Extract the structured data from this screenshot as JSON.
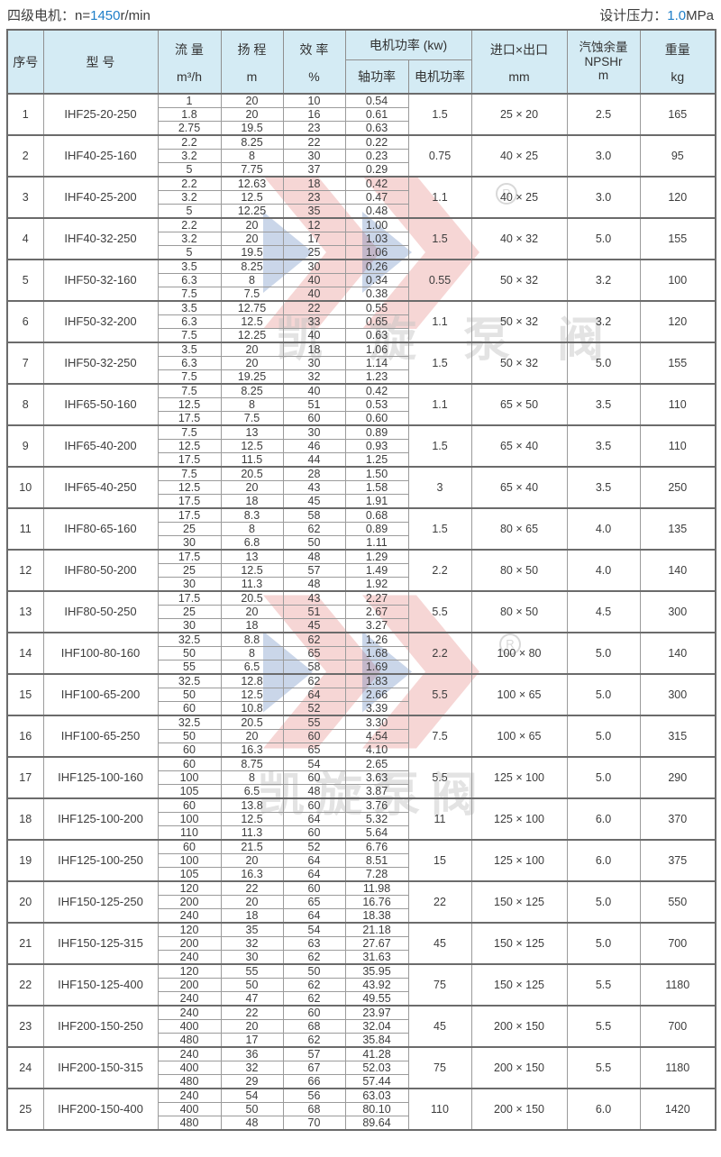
{
  "page": {
    "top_left": {
      "prefix": "四级电机：n=",
      "value": "1450",
      "suffix": "r/min"
    },
    "top_right": {
      "prefix": "设计压力：",
      "value": "1.0",
      "suffix": "MPa"
    },
    "accent_color": "#1e7ec8",
    "header_bg": "#d4ebf4"
  },
  "watermark": {
    "text": "凯旋泵阀",
    "registered": "R",
    "red": "#d0342c",
    "blue": "#2b5ca8"
  },
  "table": {
    "headers": {
      "seq": "序号",
      "model": "型 号",
      "flow_l1": "流 量",
      "flow_l2": "m³/h",
      "head_l1": "扬 程",
      "head_l2": "m",
      "eff_l1": "效 率",
      "eff_l2": "%",
      "power_group": "电机功率 (kw)",
      "shaft_power": "轴功率",
      "motor_power": "电机功率",
      "ports_l1": "进口×出口",
      "ports_l2": "mm",
      "npsh_l1": "汽蚀余量",
      "npsh_l2": "NPSHr",
      "npsh_l3": "m",
      "weight_l1": "重量",
      "weight_l2": "kg"
    },
    "rows": [
      {
        "seq": "1",
        "model": "IHF25-20-250",
        "flow": [
          "1",
          "1.8",
          "2.75"
        ],
        "head": [
          "20",
          "20",
          "19.5"
        ],
        "eff": [
          "10",
          "16",
          "23"
        ],
        "shaft": [
          "0.54",
          "0.61",
          "0.63"
        ],
        "motor": "1.5",
        "ports": "25 × 20",
        "npsh": "2.5",
        "weight": "165"
      },
      {
        "seq": "2",
        "model": "IHF40-25-160",
        "flow": [
          "2.2",
          "3.2",
          "5"
        ],
        "head": [
          "8.25",
          "8",
          "7.75"
        ],
        "eff": [
          "22",
          "30",
          "37"
        ],
        "shaft": [
          "0.22",
          "0.23",
          "0.29"
        ],
        "motor": "0.75",
        "ports": "40 × 25",
        "npsh": "3.0",
        "weight": "95"
      },
      {
        "seq": "3",
        "model": "IHF40-25-200",
        "flow": [
          "2.2",
          "3.2",
          "5"
        ],
        "head": [
          "12.63",
          "12.5",
          "12.25"
        ],
        "eff": [
          "18",
          "23",
          "35"
        ],
        "shaft": [
          "0.42",
          "0.47",
          "0.48"
        ],
        "motor": "1.1",
        "ports": "40 × 25",
        "npsh": "3.0",
        "weight": "120"
      },
      {
        "seq": "4",
        "model": "IHF40-32-250",
        "flow": [
          "2.2",
          "3.2",
          "5"
        ],
        "head": [
          "20",
          "20",
          "19.5"
        ],
        "eff": [
          "12",
          "17",
          "25"
        ],
        "shaft": [
          "1.00",
          "1.03",
          "1.06"
        ],
        "motor": "1.5",
        "ports": "40 × 32",
        "npsh": "5.0",
        "weight": "155"
      },
      {
        "seq": "5",
        "model": "IHF50-32-160",
        "flow": [
          "3.5",
          "6.3",
          "7.5"
        ],
        "head": [
          "8.25",
          "8",
          "7.5"
        ],
        "eff": [
          "30",
          "40",
          "40"
        ],
        "shaft": [
          "0.26",
          "0.34",
          "0.38"
        ],
        "motor": "0.55",
        "ports": "50 × 32",
        "npsh": "3.2",
        "weight": "100"
      },
      {
        "seq": "6",
        "model": "IHF50-32-200",
        "flow": [
          "3.5",
          "6.3",
          "7.5"
        ],
        "head": [
          "12.75",
          "12.5",
          "12.25"
        ],
        "eff": [
          "22",
          "33",
          "40"
        ],
        "shaft": [
          "0.55",
          "0.65",
          "0.63"
        ],
        "motor": "1.1",
        "ports": "50 × 32",
        "npsh": "3.2",
        "weight": "120"
      },
      {
        "seq": "7",
        "model": "IHF50-32-250",
        "flow": [
          "3.5",
          "6.3",
          "7.5"
        ],
        "head": [
          "20",
          "20",
          "19.25"
        ],
        "eff": [
          "18",
          "30",
          "32"
        ],
        "shaft": [
          "1.06",
          "1.14",
          "1.23"
        ],
        "motor": "1.5",
        "ports": "50 × 32",
        "npsh": "5.0",
        "weight": "155"
      },
      {
        "seq": "8",
        "model": "IHF65-50-160",
        "flow": [
          "7.5",
          "12.5",
          "17.5"
        ],
        "head": [
          "8.25",
          "8",
          "7.5"
        ],
        "eff": [
          "40",
          "51",
          "60"
        ],
        "shaft": [
          "0.42",
          "0.53",
          "0.60"
        ],
        "motor": "1.1",
        "ports": "65 × 50",
        "npsh": "3.5",
        "weight": "110"
      },
      {
        "seq": "9",
        "model": "IHF65-40-200",
        "flow": [
          "7.5",
          "12.5",
          "17.5"
        ],
        "head": [
          "13",
          "12.5",
          "11.5"
        ],
        "eff": [
          "30",
          "46",
          "44"
        ],
        "shaft": [
          "0.89",
          "0.93",
          "1.25"
        ],
        "motor": "1.5",
        "ports": "65 × 40",
        "npsh": "3.5",
        "weight": "110"
      },
      {
        "seq": "10",
        "model": "IHF65-40-250",
        "flow": [
          "7.5",
          "12.5",
          "17.5"
        ],
        "head": [
          "20.5",
          "20",
          "18"
        ],
        "eff": [
          "28",
          "43",
          "45"
        ],
        "shaft": [
          "1.50",
          "1.58",
          "1.91"
        ],
        "motor": "3",
        "ports": "65 × 40",
        "npsh": "3.5",
        "weight": "250"
      },
      {
        "seq": "11",
        "model": "IHF80-65-160",
        "flow": [
          "17.5",
          "25",
          "30"
        ],
        "head": [
          "8.3",
          "8",
          "6.8"
        ],
        "eff": [
          "58",
          "62",
          "50"
        ],
        "shaft": [
          "0.68",
          "0.89",
          "1.11"
        ],
        "motor": "1.5",
        "ports": "80 × 65",
        "npsh": "4.0",
        "weight": "135"
      },
      {
        "seq": "12",
        "model": "IHF80-50-200",
        "flow": [
          "17.5",
          "25",
          "30"
        ],
        "head": [
          "13",
          "12.5",
          "11.3"
        ],
        "eff": [
          "48",
          "57",
          "48"
        ],
        "shaft": [
          "1.29",
          "1.49",
          "1.92"
        ],
        "motor": "2.2",
        "ports": "80 × 50",
        "npsh": "4.0",
        "weight": "140"
      },
      {
        "seq": "13",
        "model": "IHF80-50-250",
        "flow": [
          "17.5",
          "25",
          "30"
        ],
        "head": [
          "20.5",
          "20",
          "18"
        ],
        "eff": [
          "43",
          "51",
          "45"
        ],
        "shaft": [
          "2.27",
          "2.67",
          "3.27"
        ],
        "motor": "5.5",
        "ports": "80 × 50",
        "npsh": "4.5",
        "weight": "300"
      },
      {
        "seq": "14",
        "model": "IHF100-80-160",
        "flow": [
          "32.5",
          "50",
          "55"
        ],
        "head": [
          "8.8",
          "8",
          "6.5"
        ],
        "eff": [
          "62",
          "65",
          "58"
        ],
        "shaft": [
          "1.26",
          "1.68",
          "1.69"
        ],
        "motor": "2.2",
        "ports": "100 × 80",
        "npsh": "5.0",
        "weight": "140"
      },
      {
        "seq": "15",
        "model": "IHF100-65-200",
        "flow": [
          "32.5",
          "50",
          "60"
        ],
        "head": [
          "12.8",
          "12.5",
          "10.8"
        ],
        "eff": [
          "62",
          "64",
          "52"
        ],
        "shaft": [
          "1.83",
          "2.66",
          "3.39"
        ],
        "motor": "5.5",
        "ports": "100 × 65",
        "npsh": "5.0",
        "weight": "300"
      },
      {
        "seq": "16",
        "model": "IHF100-65-250",
        "flow": [
          "32.5",
          "50",
          "60"
        ],
        "head": [
          "20.5",
          "20",
          "16.3"
        ],
        "eff": [
          "55",
          "60",
          "65"
        ],
        "shaft": [
          "3.30",
          "4.54",
          "4.10"
        ],
        "motor": "7.5",
        "ports": "100 × 65",
        "npsh": "5.0",
        "weight": "315"
      },
      {
        "seq": "17",
        "model": "IHF125-100-160",
        "flow": [
          "60",
          "100",
          "105"
        ],
        "head": [
          "8.75",
          "8",
          "6.5"
        ],
        "eff": [
          "54",
          "60",
          "48"
        ],
        "shaft": [
          "2.65",
          "3.63",
          "3.87"
        ],
        "motor": "5.5",
        "ports": "125 × 100",
        "npsh": "5.0",
        "weight": "290"
      },
      {
        "seq": "18",
        "model": "IHF125-100-200",
        "flow": [
          "60",
          "100",
          "110"
        ],
        "head": [
          "13.8",
          "12.5",
          "11.3"
        ],
        "eff": [
          "60",
          "64",
          "60"
        ],
        "shaft": [
          "3.76",
          "5.32",
          "5.64"
        ],
        "motor": "11",
        "ports": "125 × 100",
        "npsh": "6.0",
        "weight": "370"
      },
      {
        "seq": "19",
        "model": "IHF125-100-250",
        "flow": [
          "60",
          "100",
          "105"
        ],
        "head": [
          "21.5",
          "20",
          "16.3"
        ],
        "eff": [
          "52",
          "64",
          "64"
        ],
        "shaft": [
          "6.76",
          "8.51",
          "7.28"
        ],
        "motor": "15",
        "ports": "125 × 100",
        "npsh": "6.0",
        "weight": "375"
      },
      {
        "seq": "20",
        "model": "IHF150-125-250",
        "flow": [
          "120",
          "200",
          "240"
        ],
        "head": [
          "22",
          "20",
          "18"
        ],
        "eff": [
          "60",
          "65",
          "64"
        ],
        "shaft": [
          "11.98",
          "16.76",
          "18.38"
        ],
        "motor": "22",
        "ports": "150 × 125",
        "npsh": "5.0",
        "weight": "550"
      },
      {
        "seq": "21",
        "model": "IHF150-125-315",
        "flow": [
          "120",
          "200",
          "240"
        ],
        "head": [
          "35",
          "32",
          "30"
        ],
        "eff": [
          "54",
          "63",
          "62"
        ],
        "shaft": [
          "21.18",
          "27.67",
          "31.63"
        ],
        "motor": "45",
        "ports": "150 × 125",
        "npsh": "5.0",
        "weight": "700"
      },
      {
        "seq": "22",
        "model": "IHF150-125-400",
        "flow": [
          "120",
          "200",
          "240"
        ],
        "head": [
          "55",
          "50",
          "47"
        ],
        "eff": [
          "50",
          "62",
          "62"
        ],
        "shaft": [
          "35.95",
          "43.92",
          "49.55"
        ],
        "motor": "75",
        "ports": "150 × 125",
        "npsh": "5.5",
        "weight": "1180"
      },
      {
        "seq": "23",
        "model": "IHF200-150-250",
        "flow": [
          "240",
          "400",
          "480"
        ],
        "head": [
          "22",
          "20",
          "17"
        ],
        "eff": [
          "60",
          "68",
          "62"
        ],
        "shaft": [
          "23.97",
          "32.04",
          "35.84"
        ],
        "motor": "45",
        "ports": "200 × 150",
        "npsh": "5.5",
        "weight": "700"
      },
      {
        "seq": "24",
        "model": "IHF200-150-315",
        "flow": [
          "240",
          "400",
          "480"
        ],
        "head": [
          "36",
          "32",
          "29"
        ],
        "eff": [
          "57",
          "67",
          "66"
        ],
        "shaft": [
          "41.28",
          "52.03",
          "57.44"
        ],
        "motor": "75",
        "ports": "200 × 150",
        "npsh": "5.5",
        "weight": "1180"
      },
      {
        "seq": "25",
        "model": "IHF200-150-400",
        "flow": [
          "240",
          "400",
          "480"
        ],
        "head": [
          "54",
          "50",
          "48"
        ],
        "eff": [
          "56",
          "68",
          "70"
        ],
        "shaft": [
          "63.03",
          "80.10",
          "89.64"
        ],
        "motor": "110",
        "ports": "200 × 150",
        "npsh": "6.0",
        "weight": "1420"
      }
    ]
  }
}
